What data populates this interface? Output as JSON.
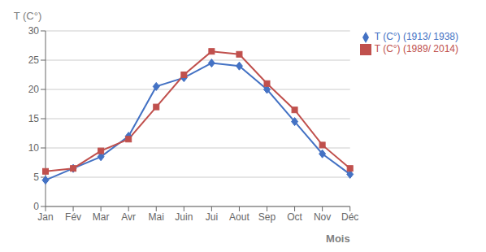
{
  "chart_data": {
    "type": "line",
    "categories": [
      "Jan",
      "Fév",
      "Mar",
      "Avr",
      "Mai",
      "Juin",
      "Jui",
      "Aout",
      "Sep",
      "Oct",
      "Nov",
      "Déc"
    ],
    "series": [
      {
        "name": "T (C°) (1913/ 1938)",
        "color": "#4472C4",
        "marker": "diamond",
        "values": [
          4.5,
          6.5,
          8.5,
          12,
          20.5,
          22,
          24.5,
          24,
          20,
          14.5,
          9,
          5.5
        ]
      },
      {
        "name": "T (C°) (1989/ 2014)",
        "color": "#C0504D",
        "marker": "square",
        "values": [
          6,
          6.5,
          9.5,
          11.5,
          17,
          22.5,
          26.5,
          26,
          21,
          16.5,
          10.5,
          6.5
        ]
      }
    ],
    "xlabel": "Mois",
    "ylabel": "T (C°)",
    "ylim": [
      0,
      30
    ],
    "yticks": [
      0,
      5,
      10,
      15,
      20,
      25,
      30
    ],
    "grid": true,
    "legend": "upper right"
  }
}
